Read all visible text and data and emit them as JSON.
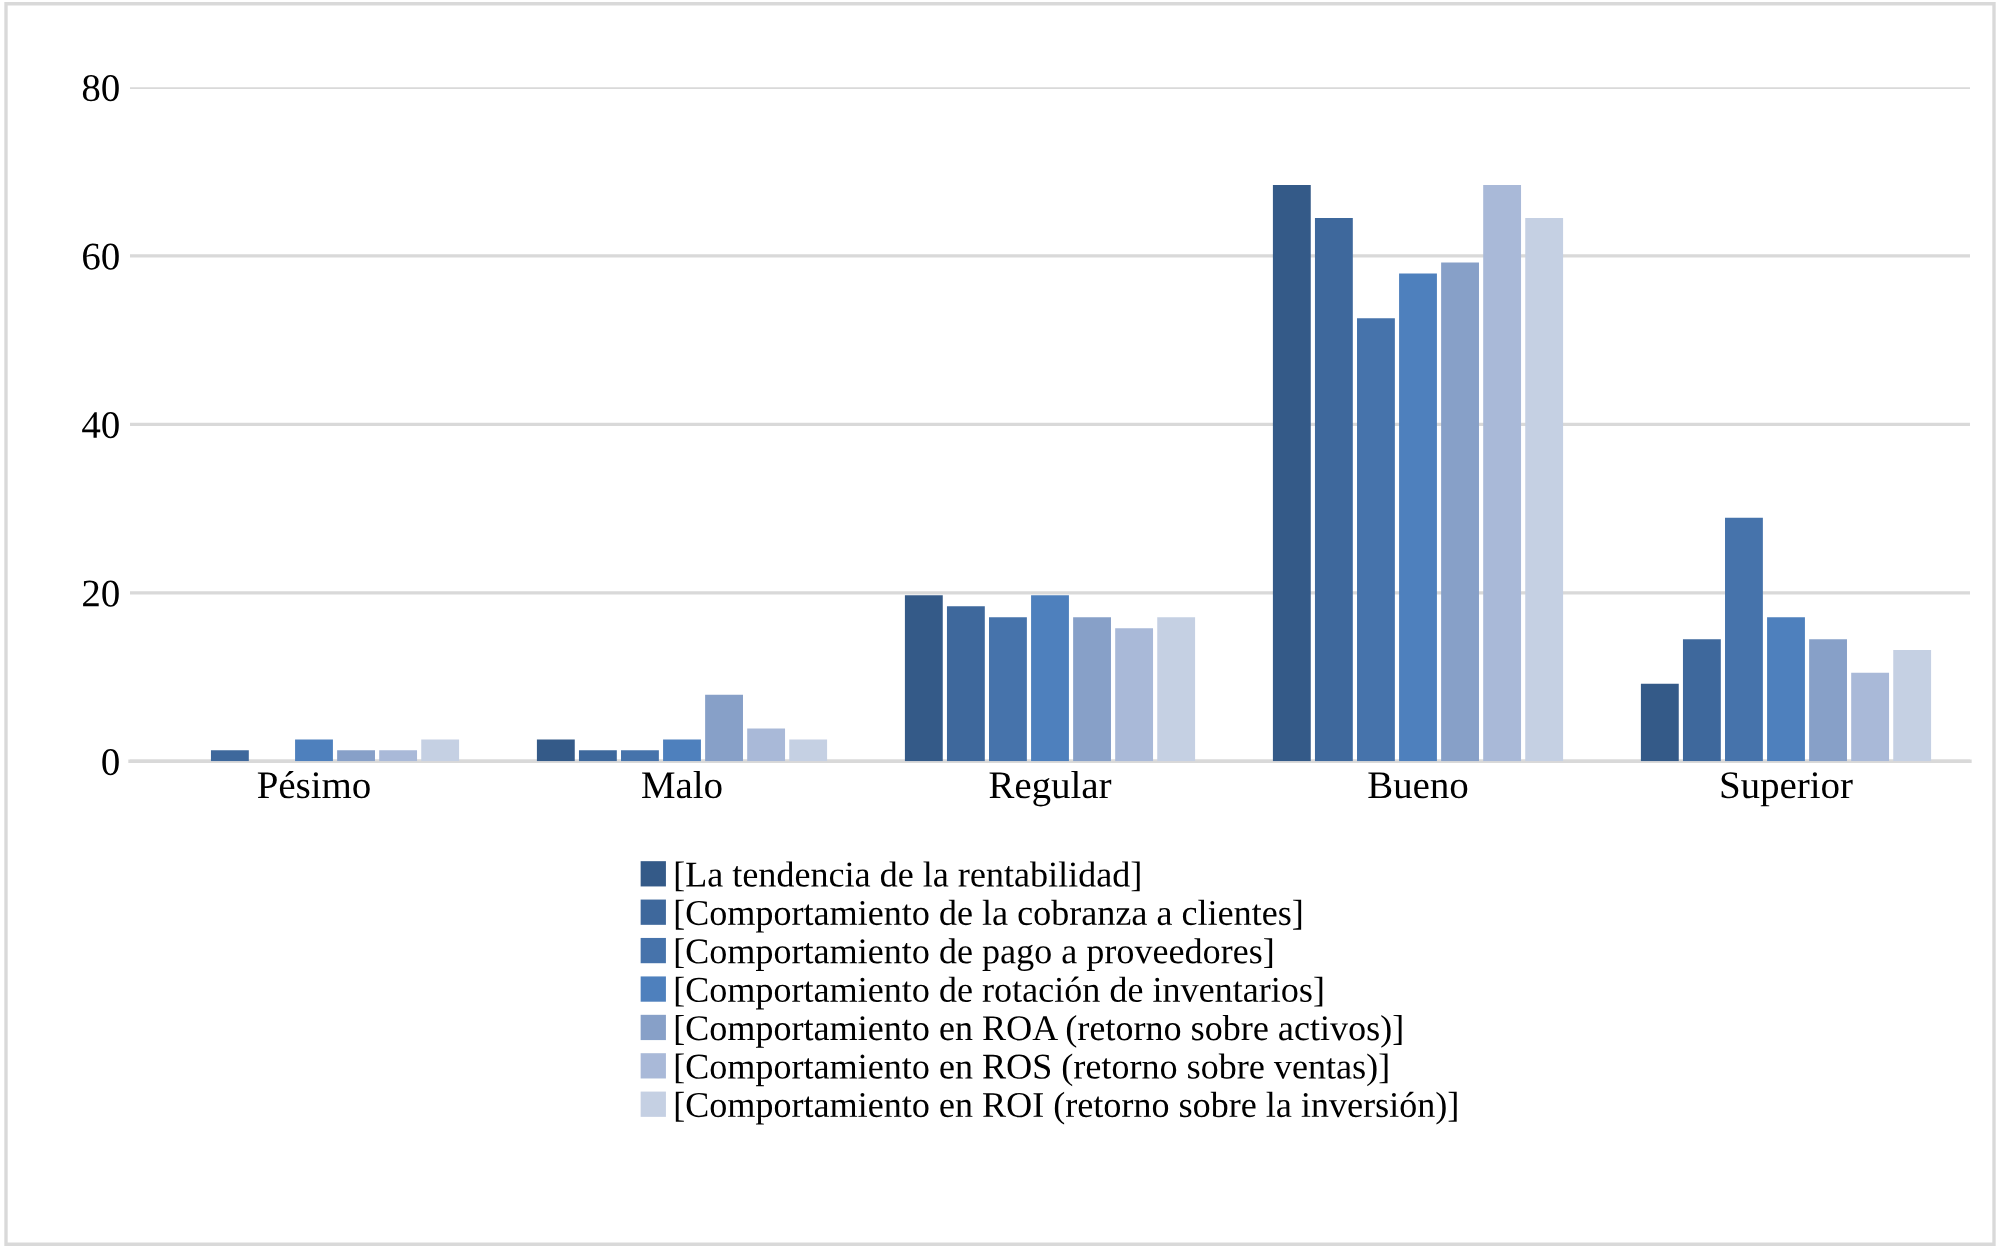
{
  "chart_data": {
    "type": "bar",
    "categories": [
      "Pésimo",
      "Malo",
      "Regular",
      "Bueno",
      "Superior"
    ],
    "series": [
      {
        "name": "[La tendencia de la rentabilidad]",
        "color": "#345a88",
        "values": [
          0,
          2.6,
          19.7,
          68.4,
          9.2
        ]
      },
      {
        "name": "[Comportamiento de la cobranza a clientes]",
        "color": "#3e689c",
        "values": [
          1.3,
          1.3,
          18.4,
          64.5,
          14.5
        ]
      },
      {
        "name": "[Comportamiento de pago a proveedores]",
        "color": "#4673ab",
        "values": [
          0,
          1.3,
          17.1,
          52.6,
          28.9
        ]
      },
      {
        "name": "[Comportamiento de rotación de inventarios]",
        "color": "#4e80bd",
        "values": [
          2.6,
          2.6,
          19.7,
          57.9,
          17.1
        ]
      },
      {
        "name": "[Comportamiento en ROA (retorno sobre activos)]",
        "color": "#87a0c8",
        "values": [
          1.3,
          7.9,
          17.1,
          59.2,
          14.5
        ]
      },
      {
        "name": "[Comportamiento en ROS (retorno sobre ventas)]",
        "color": "#a9b9d8",
        "values": [
          1.3,
          3.9,
          15.8,
          68.4,
          10.5
        ]
      },
      {
        "name": "[Comportamiento en ROI (retorno sobre la inversión)]",
        "color": "#c5d0e3",
        "values": [
          2.6,
          2.6,
          17.1,
          64.5,
          13.2
        ]
      }
    ],
    "ylim": [
      0,
      80
    ],
    "yticks": [
      0,
      20,
      40,
      60,
      80
    ],
    "grid": "y",
    "legend": "bottom"
  }
}
